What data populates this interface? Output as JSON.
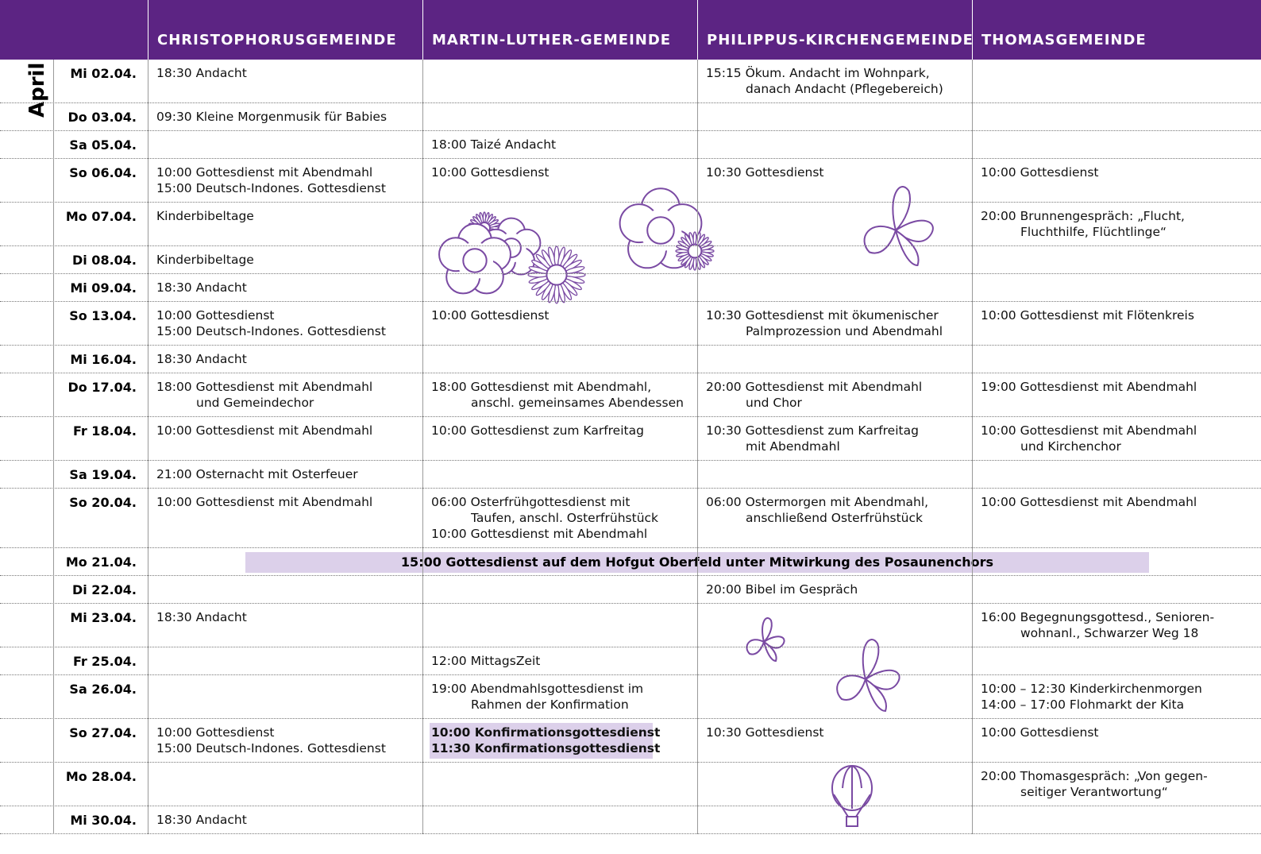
{
  "header": {
    "columns": [
      "CHRISTOPHORUSGEMEINDE",
      "MARTIN-LUTHER-GEMEINDE",
      "PHILIPPUS-KIRCHENGEMEINDE",
      "THOMASGEMEINDE"
    ]
  },
  "month": "April",
  "rows": [
    {
      "date": "Mi 02.04.",
      "cells": [
        [
          "18:30 Andacht"
        ],
        [],
        [
          "15:15 Ökum. Andacht im Wohnpark,",
          "danach Andacht (Pflegebereich)"
        ],
        []
      ]
    },
    {
      "date": "Do 03.04.",
      "cells": [
        [
          "09:30 Kleine Morgenmusik für Babies"
        ],
        [],
        [],
        []
      ]
    },
    {
      "date": "Sa 05.04.",
      "cells": [
        [],
        [
          "18:00 Taizé Andacht"
        ],
        [],
        []
      ]
    },
    {
      "date": "So 06.04.",
      "cells": [
        [
          "10:00 Gottesdienst mit Abendmahl",
          "15:00 Deutsch-Indones. Gottesdienst"
        ],
        [
          "10:00 Gottesdienst"
        ],
        [
          "10:30 Gottesdienst"
        ],
        [
          "10:00 Gottesdienst"
        ]
      ]
    },
    {
      "date": "Mo 07.04.",
      "cells": [
        [
          "Kinderbibeltage"
        ],
        [],
        [],
        [
          "20:00 Brunnengespräch: „Flucht,",
          "Fluchthilfe, Flüchtlinge“"
        ]
      ]
    },
    {
      "date": "Di 08.04.",
      "cells": [
        [
          "Kinderbibeltage"
        ],
        [],
        [],
        []
      ]
    },
    {
      "date": "Mi 09.04.",
      "cells": [
        [
          "18:30 Andacht"
        ],
        [],
        [],
        []
      ]
    },
    {
      "date": "So 13.04.",
      "cells": [
        [
          "10:00 Gottesdienst",
          "15:00 Deutsch-Indones. Gottesdienst"
        ],
        [
          "10:00 Gottesdienst"
        ],
        [
          "10:30 Gottesdienst mit ökumenischer",
          "Palmprozession und Abendmahl"
        ],
        [
          "10:00 Gottesdienst mit Flötenkreis"
        ]
      ]
    },
    {
      "date": "Mi 16.04.",
      "cells": [
        [
          "18:30 Andacht"
        ],
        [],
        [],
        []
      ]
    },
    {
      "date": "Do 17.04.",
      "cells": [
        [
          "18:00 Gottesdienst mit Abendmahl",
          "und Gemeindechor"
        ],
        [
          "18:00 Gottesdienst mit Abendmahl,",
          "anschl. gemeinsames Abendessen"
        ],
        [
          "20:00 Gottesdienst mit Abendmahl",
          "und Chor"
        ],
        [
          "19:00 Gottesdienst mit Abendmahl"
        ]
      ]
    },
    {
      "date": "Fr 18.04.",
      "cells": [
        [
          "10:00 Gottesdienst mit Abendmahl"
        ],
        [
          "10:00 Gottesdienst zum Karfreitag"
        ],
        [
          "10:30 Gottesdienst zum Karfreitag",
          "mit Abendmahl"
        ],
        [
          "10:00 Gottesdienst mit Abendmahl",
          "und Kirchenchor"
        ]
      ]
    },
    {
      "date": "Sa 19.04.",
      "cells": [
        [
          "21:00 Osternacht mit Osterfeuer"
        ],
        [],
        [],
        []
      ]
    },
    {
      "date": "So 20.04.",
      "cells": [
        [
          "10:00 Gottesdienst mit Abendmahl"
        ],
        [
          "06:00 Osterfrühgottesdienst mit",
          "Taufen, anschl. Osterfrühstück",
          "10:00 Gottesdienst mit Abendmahl"
        ],
        [
          "06:00 Ostermorgen mit Abendmahl,",
          "anschließend Osterfrühstück"
        ],
        [
          "10:00 Gottesdienst mit Abendmahl"
        ]
      ]
    },
    {
      "date": "Mo 21.04.",
      "span": "15:00 Gottesdienst auf dem Hofgut Oberfeld unter Mitwirkung des Posaunenchors"
    },
    {
      "date": "Di 22.04.",
      "cells": [
        [],
        [],
        [
          "20:00 Bibel im Gespräch"
        ],
        []
      ]
    },
    {
      "date": "Mi 23.04.",
      "cells": [
        [
          "18:30 Andacht"
        ],
        [],
        [],
        [
          "16:00 Begegnungsgottesd., Senioren-",
          "wohnanl., Schwarzer Weg 18"
        ]
      ]
    },
    {
      "date": "Fr 25.04.",
      "cells": [
        [],
        [
          "12:00 MittagsZeit"
        ],
        [],
        []
      ]
    },
    {
      "date": "Sa 26.04.",
      "cells": [
        [],
        [
          "19:00 Abendmahlsgottesdienst im",
          "Rahmen der Konfirmation"
        ],
        [],
        [
          "10:00 – 12:30 Kinderkirchenmorgen",
          "14:00 – 17:00 Flohmarkt der Kita"
        ]
      ]
    },
    {
      "date": "So 27.04.",
      "cells": [
        [
          "10:00 Gottesdienst",
          "15:00 Deutsch-Indones. Gottesdienst"
        ],
        {
          "lines": [
            "10:00 Konfirmationsgottesdienst",
            "11:30 Konfirmationsgottesdienst"
          ],
          "highlight": true
        },
        [
          "10:30 Gottesdienst"
        ],
        [
          "10:00 Gottesdienst"
        ]
      ]
    },
    {
      "date": "Mo 28.04.",
      "cells": [
        [],
        [],
        [],
        [
          "20:00 Thomasgespräch: „Von gegen-",
          "seitiger Verantwortung“"
        ]
      ]
    },
    {
      "date": "Mi 30.04.",
      "cells": [
        [
          "18:30 Andacht"
        ],
        [],
        [],
        []
      ]
    }
  ]
}
